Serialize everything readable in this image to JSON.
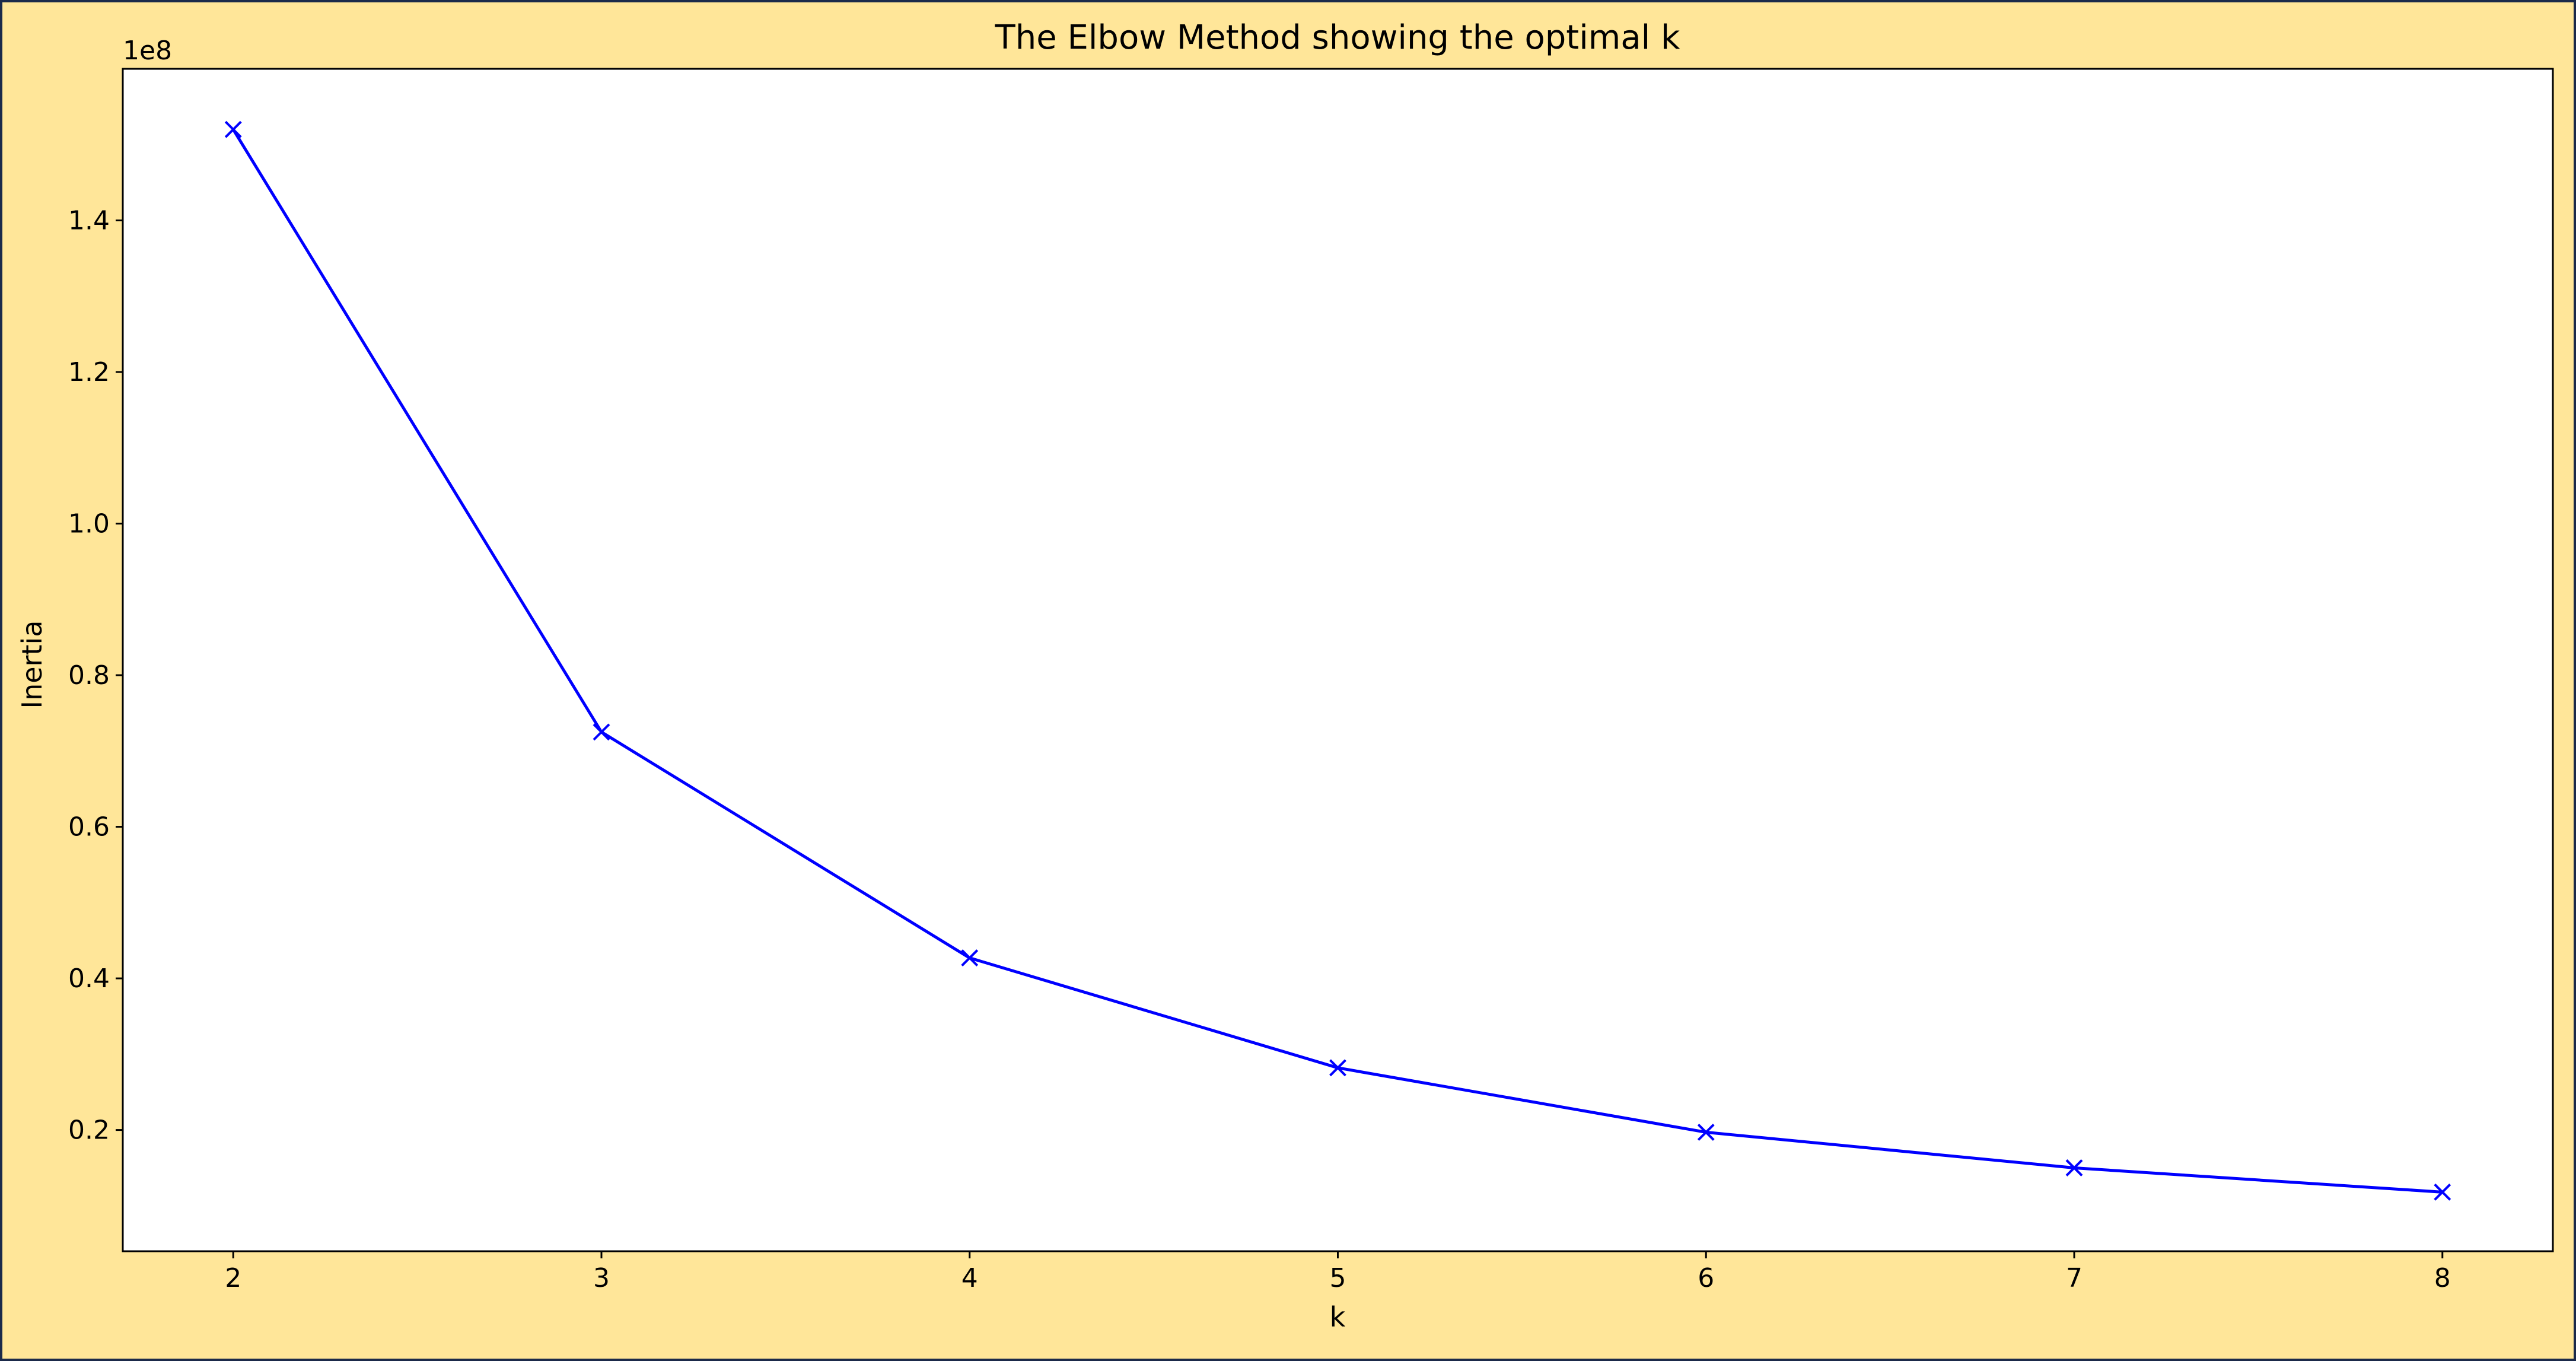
{
  "chart_data": {
    "type": "line",
    "title": "The Elbow Method showing the optimal k",
    "xlabel": "k",
    "ylabel": "Inertia",
    "y_offset_label": "1e8",
    "x": [
      2,
      3,
      4,
      5,
      6,
      7,
      8
    ],
    "series": [
      {
        "values": [
          152000000,
          72500000,
          42700000,
          28200000,
          19700000,
          15000000,
          11800000
        ]
      }
    ],
    "xlim": [
      1.7,
      8.3
    ],
    "ylim": [
      4000000,
      160000000
    ],
    "xticks": [
      2,
      3,
      4,
      5,
      6,
      7,
      8
    ],
    "yticks": [
      20000000,
      40000000,
      60000000,
      80000000,
      100000000,
      120000000,
      140000000
    ],
    "ytick_labels": [
      "0.2",
      "0.4",
      "0.6",
      "0.8",
      "1.0",
      "1.2",
      "1.4"
    ],
    "marker": "x",
    "grid": false,
    "line_color": "#0000ff",
    "background_color": "#ffe699",
    "plot_background": "#ffffff"
  }
}
